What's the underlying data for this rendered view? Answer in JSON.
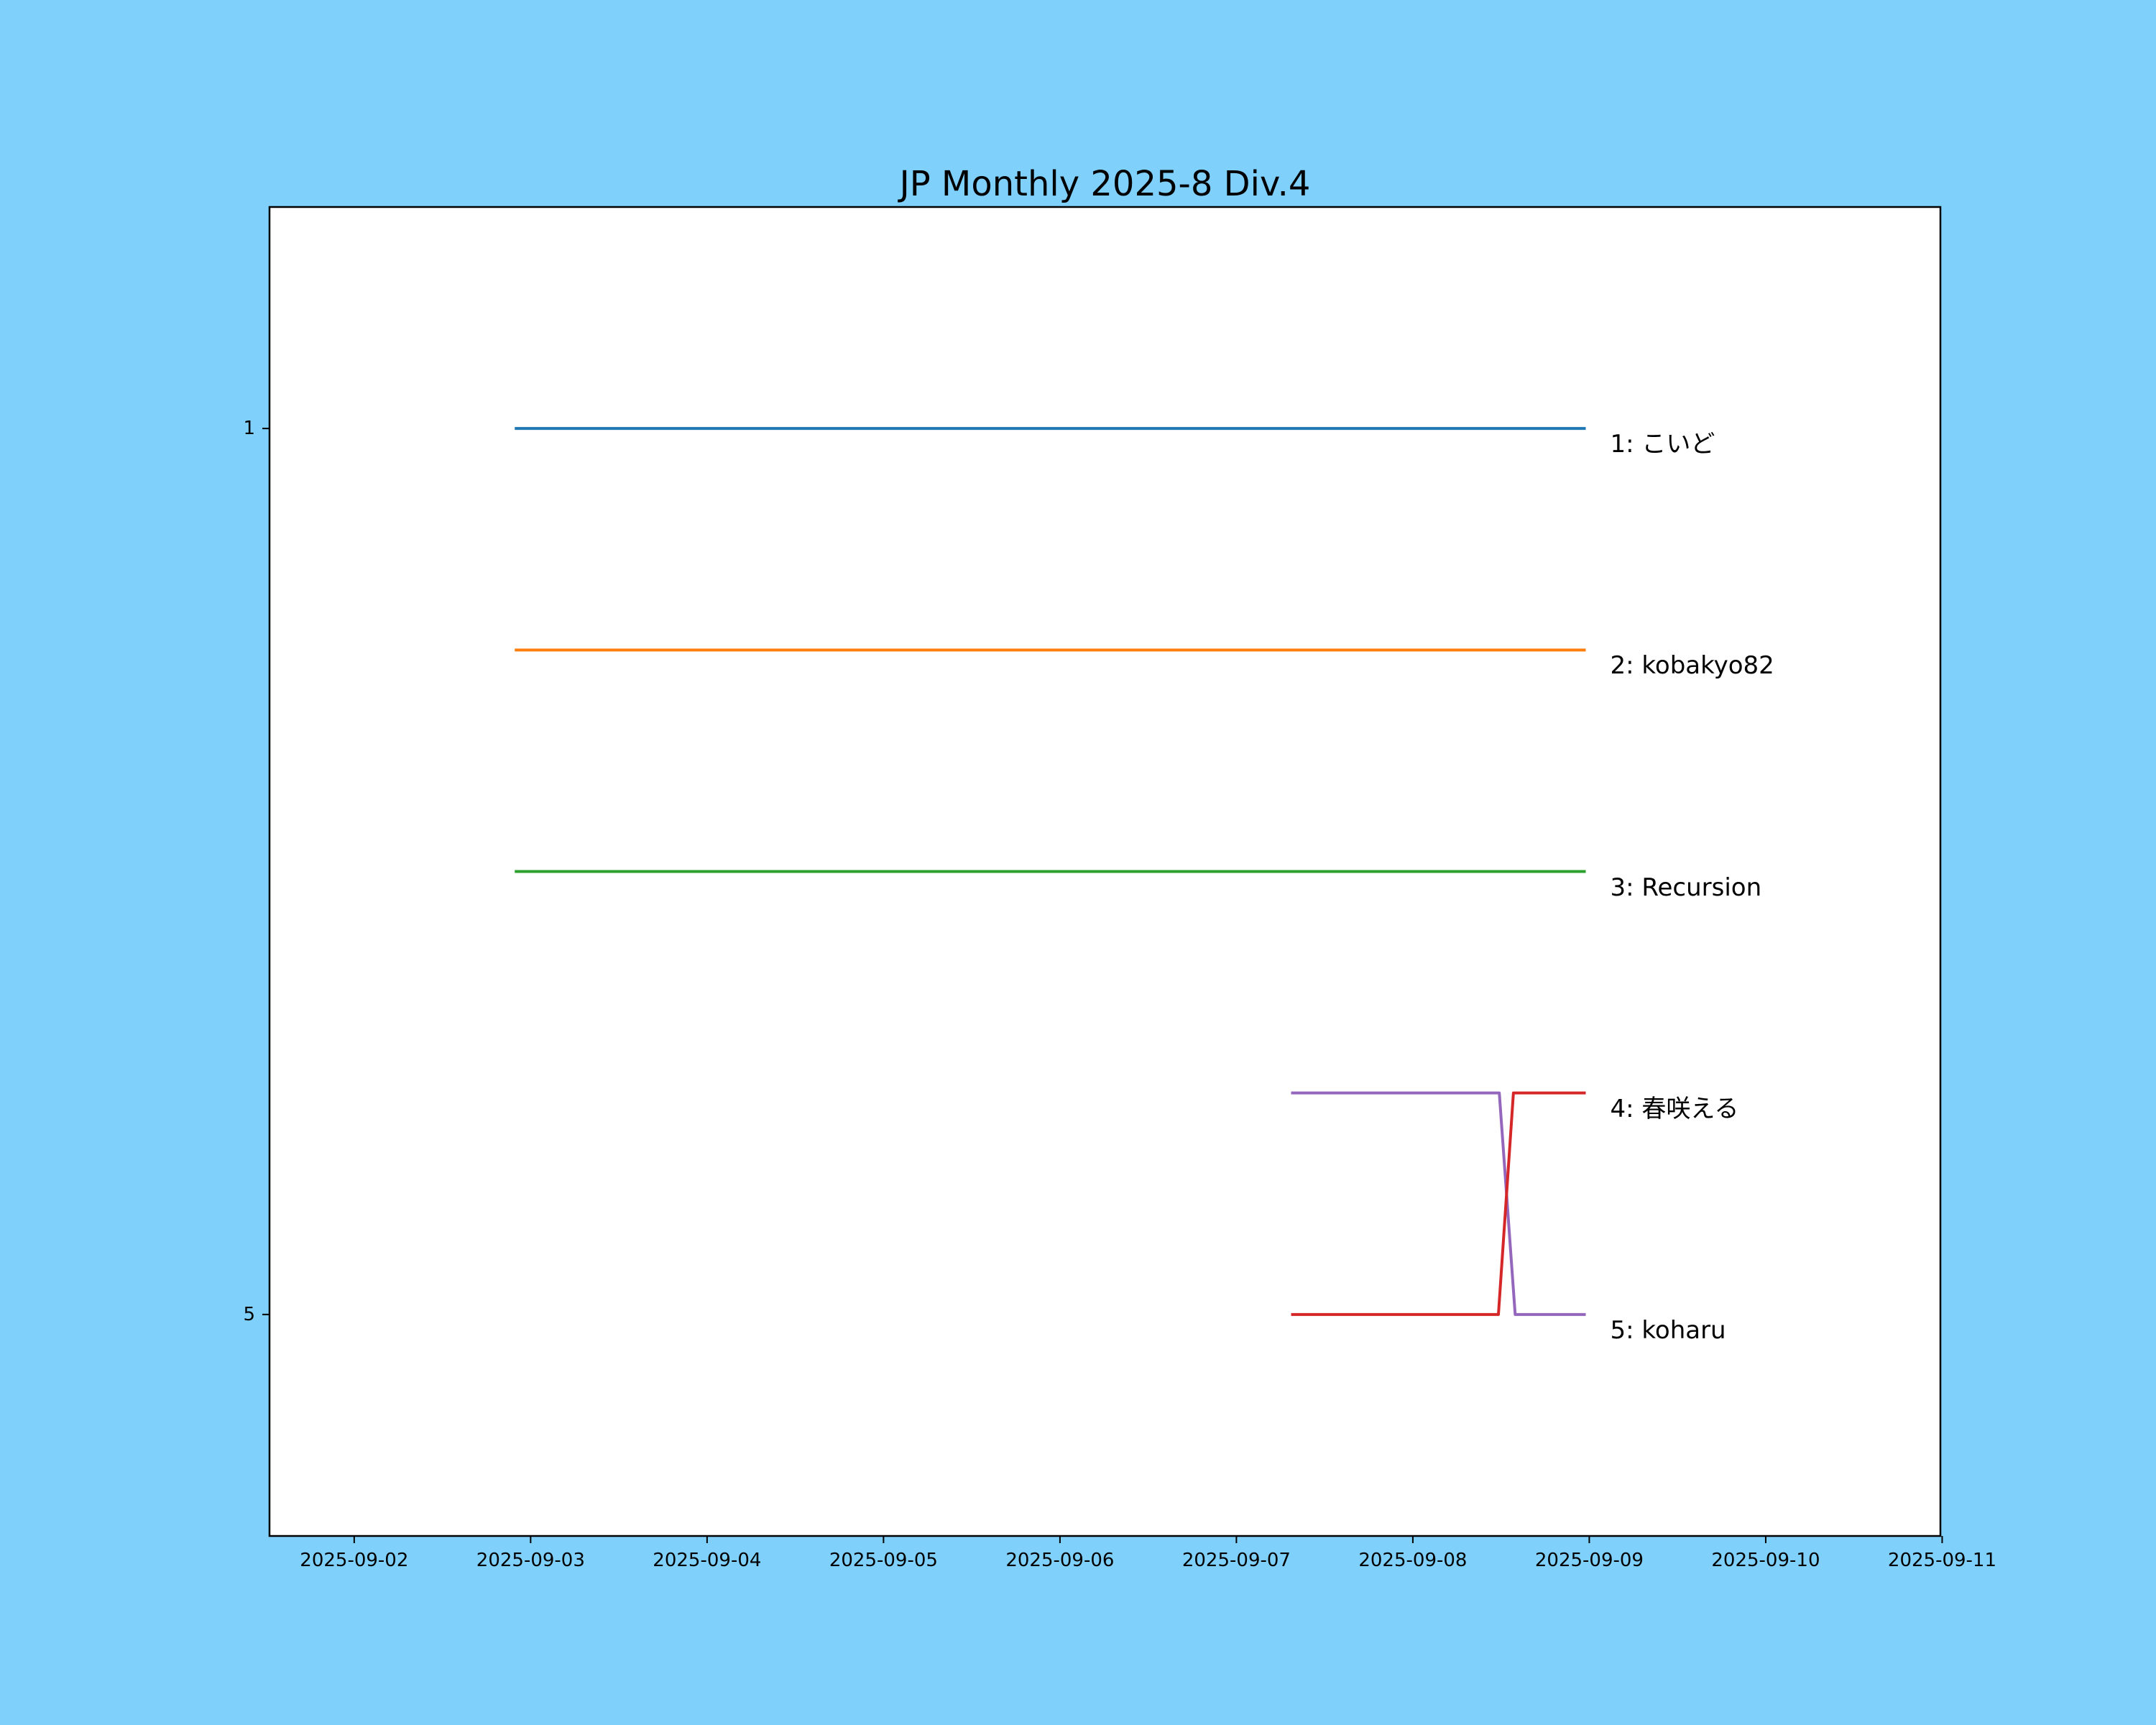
{
  "figure": {
    "background_color": "#7fd0fb",
    "plot_background_color": "#ffffff",
    "plot_border_color": "#000000"
  },
  "chart_data": {
    "type": "line",
    "subtype": "bump-ranking-chart",
    "title": "JP Monthly 2025-8 Div.4",
    "xlabel": "",
    "ylabel": "",
    "x_unit": "days since 2025-09-02",
    "xlim": [
      -0.48,
      8.99
    ],
    "ylim": [
      0,
      6
    ],
    "y_axis_inverted": true,
    "grid": false,
    "legend_position": "right-of-line-ends",
    "x_ticks": [
      {
        "position": 0,
        "label": "2025-09-02"
      },
      {
        "position": 1,
        "label": "2025-09-03"
      },
      {
        "position": 2,
        "label": "2025-09-04"
      },
      {
        "position": 3,
        "label": "2025-09-05"
      },
      {
        "position": 4,
        "label": "2025-09-06"
      },
      {
        "position": 5,
        "label": "2025-09-07"
      },
      {
        "position": 6,
        "label": "2025-09-08"
      },
      {
        "position": 7,
        "label": "2025-09-09"
      },
      {
        "position": 8,
        "label": "2025-09-10"
      },
      {
        "position": 9,
        "label": "2025-09-11"
      }
    ],
    "y_ticks": [
      {
        "position": 1,
        "label": "1"
      },
      {
        "position": 5,
        "label": "5"
      }
    ],
    "draw_order": [
      0,
      1,
      2,
      4,
      3
    ],
    "series": [
      {
        "label": "1: こいど",
        "player": "こいど",
        "final_rank": 1,
        "color": "#1f77b4",
        "x": [
          0.91,
          6.98
        ],
        "rank": [
          1,
          1
        ]
      },
      {
        "label": "2: kobakyo82",
        "player": "kobakyo82",
        "final_rank": 2,
        "color": "#ff7f0e",
        "x": [
          0.91,
          6.98
        ],
        "rank": [
          2,
          2
        ]
      },
      {
        "label": "3: Recursion",
        "player": "Recursion",
        "final_rank": 3,
        "color": "#2ca02c",
        "x": [
          0.91,
          6.98
        ],
        "rank": [
          3,
          3
        ]
      },
      {
        "label": "4: 春咲える",
        "player": "春咲える",
        "final_rank": 4,
        "color": "#d62728",
        "x": [
          5.31,
          6.485,
          6.57,
          6.98
        ],
        "rank": [
          5,
          5,
          4,
          4
        ]
      },
      {
        "label": "5: koharu",
        "player": "koharu",
        "final_rank": 5,
        "color": "#9467bd",
        "x": [
          5.31,
          6.49,
          6.58,
          6.98
        ],
        "rank": [
          4,
          4,
          5,
          5
        ]
      }
    ]
  }
}
